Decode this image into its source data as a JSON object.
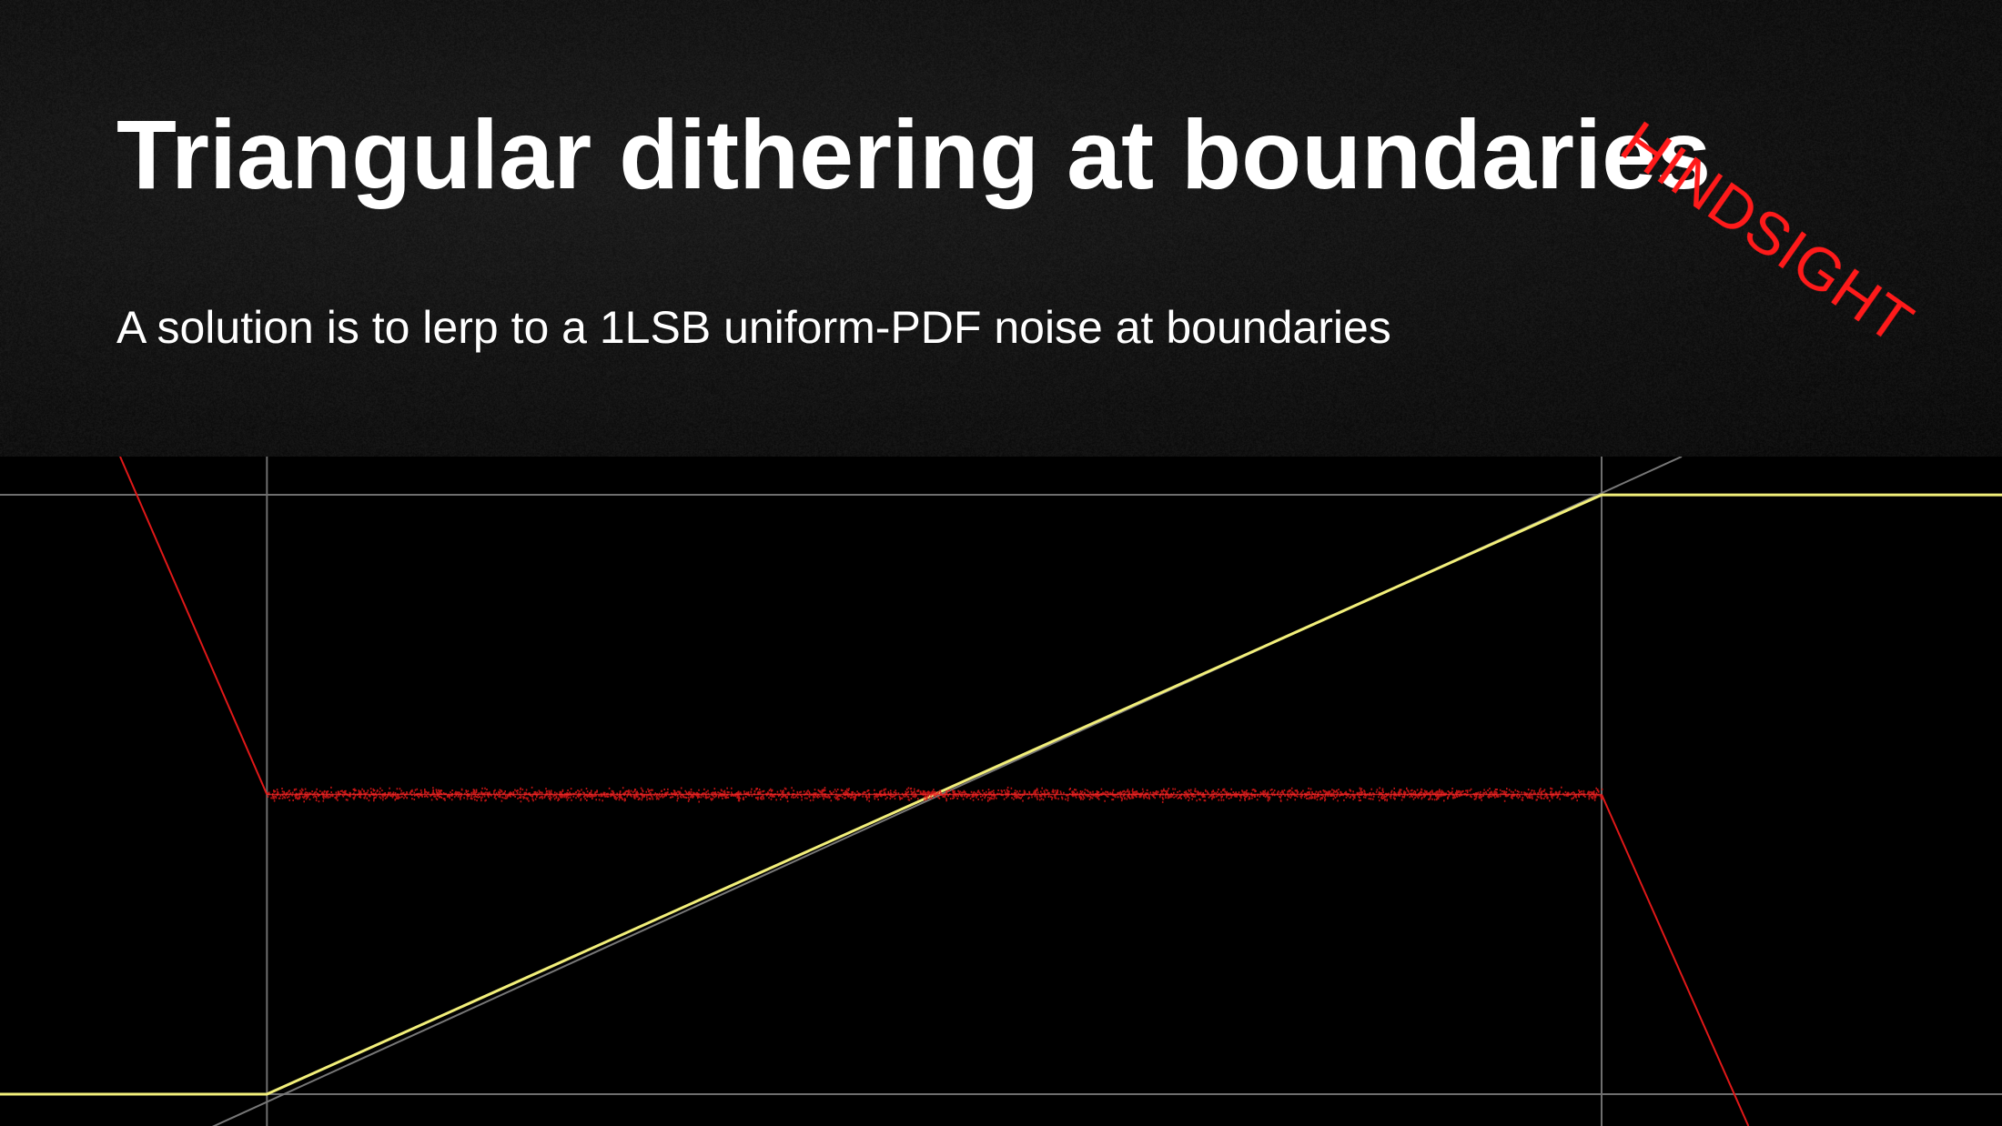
{
  "slide": {
    "title": "Triangular dithering at boundaries",
    "subtitle": "A solution is to lerp to a 1LSB uniform-PDF noise at boundaries",
    "stamp": "HINDSIGHT"
  },
  "colors": {
    "background": "#000000",
    "grid": "#6e6e6e",
    "signal": "#f2ef7a",
    "error": "#e01818",
    "stamp": "#ff1a1a",
    "text": "#ffffff"
  },
  "chart_data": {
    "type": "line",
    "title": "",
    "xlabel": "",
    "ylabel": "",
    "xlim": [
      -0.2,
      1.3
    ],
    "ylim": [
      -0.05,
      1.0
    ],
    "grid": true,
    "gridlines": {
      "x": [
        0,
        1
      ],
      "y": [
        0,
        0.94
      ]
    },
    "series": [
      {
        "name": "",
        "role": "reference",
        "color": "#777777",
        "x": [
          -0.05,
          1.06
        ],
        "y": [
          -0.06,
          1.0
        ]
      },
      {
        "name": "",
        "role": "output",
        "color": "#f2ef7a",
        "x": [
          -0.2,
          0,
          1,
          1.3
        ],
        "y": [
          0,
          0,
          0.94,
          0.94
        ]
      },
      {
        "name": "",
        "role": "noise",
        "color": "#e01818",
        "noisy_span": [
          0,
          1
        ],
        "x": [
          -0.11,
          0,
          1,
          1.11
        ],
        "y": [
          1.0,
          0.47,
          0.47,
          -0.05
        ]
      }
    ]
  }
}
